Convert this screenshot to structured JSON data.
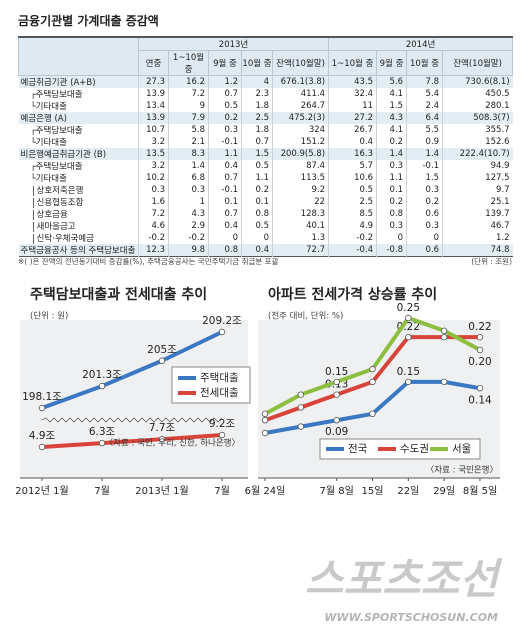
{
  "table": {
    "title": "금융기관별 가계대출 증감액",
    "groups": [
      "2013년",
      "2014년"
    ],
    "columns": [
      "연중",
      "1~10월 중",
      "9월 중",
      "10월 중",
      "잔액(10월말)",
      "1~10월 중",
      "9월 중",
      "10월 중",
      "잔액(10월말)"
    ],
    "rows": [
      {
        "label": "예금취급기관 (A+B)",
        "cells": [
          "27.3",
          "16.2",
          "1.2",
          "4",
          "676.1(3.8)",
          "43.5",
          "5.6",
          "7.8",
          "730.6(8.1)"
        ]
      },
      {
        "label": "┌주택담보대출",
        "cells": [
          "13.9",
          "7.2",
          "0.7",
          "2.3",
          "411.4",
          "32.4",
          "4.1",
          "5.4",
          "450.5"
        ]
      },
      {
        "label": "└기타대출",
        "cells": [
          "13.4",
          "9",
          "0.5",
          "1.8",
          "264.7",
          "11",
          "1.5",
          "2.4",
          "280.1"
        ]
      },
      {
        "label": "예금은행 (A)",
        "cells": [
          "13.9",
          "7.9",
          "0.2",
          "2.5",
          "475.2(3)",
          "27.2",
          "4.3",
          "6.4",
          "508.3(7)"
        ]
      },
      {
        "label": "┌주택담보대출",
        "cells": [
          "10.7",
          "5.8",
          "0.3",
          "1.8",
          "324",
          "26.7",
          "4.1",
          "5.5",
          "355.7"
        ]
      },
      {
        "label": "└기타대출",
        "cells": [
          "3.2",
          "2.1",
          "-0.1",
          "0.7",
          "151.2",
          "0.4",
          "0.2",
          "0.9",
          "152.6"
        ]
      },
      {
        "label": "비은행예금취급기관 (B)",
        "cells": [
          "13.5",
          "8.3",
          "1.1",
          "1.5",
          "200.9(5.8)",
          "16.3",
          "1.4",
          "1.4",
          "222.4(10.7)"
        ]
      },
      {
        "label": "┌주택담보대출",
        "cells": [
          "3.2",
          "1.4",
          "0.4",
          "0.5",
          "87.4",
          "5.7",
          "0.3",
          "-0.1",
          "94.9"
        ]
      },
      {
        "label": "└기타대출",
        "cells": [
          "10.2",
          "6.8",
          "0.7",
          "1.1",
          "113.5",
          "10.6",
          "1.1",
          "1.5",
          "127.5"
        ]
      },
      {
        "label": "상호저축은행",
        "cells": [
          "0.3",
          "0.3",
          "-0.1",
          "0.2",
          "9.2",
          "0.5",
          "0.1",
          "0.3",
          "9.7"
        ]
      },
      {
        "label": "신용협동조합",
        "cells": [
          "1.6",
          "1",
          "0.1",
          "0.1",
          "22",
          "2.5",
          "0.2",
          "0.2",
          "25.1"
        ]
      },
      {
        "label": "상호금융",
        "cells": [
          "7.2",
          "4.3",
          "0.7",
          "0.8",
          "128.3",
          "8.5",
          "0.8",
          "0.6",
          "139.7"
        ]
      },
      {
        "label": "새마을금고",
        "cells": [
          "4.6",
          "2.9",
          "0.4",
          "0.5",
          "40.1",
          "4.9",
          "0.3",
          "0.3",
          "46.7"
        ]
      },
      {
        "label": "신탁·우체국예금",
        "cells": [
          "-0.2",
          "-0.2",
          "0",
          "0",
          "1.3",
          "-0.2",
          "0",
          "0",
          "1.2"
        ]
      },
      {
        "label": "주택금융공사 등의 주택담보대출",
        "cells": [
          "12.3",
          "9.8",
          "0.8",
          "0.4",
          "72.7",
          "-0.4",
          "-0.8",
          "0.6",
          "74.8"
        ]
      }
    ],
    "note": "※( )은 잔액의 전년동기대비 증감률(%), 주택금융공사는 국민주택기금 취급분 포괄",
    "unit": "(단위 : 조원)"
  },
  "chart_data": [
    {
      "type": "line",
      "title": "주택담보대출과 전세대출 추이",
      "subtitle": "(단위 : 원)",
      "categories": [
        "2012년 1월",
        "7월",
        "2013년 1월",
        "7월"
      ],
      "series": [
        {
          "name": "전세대출",
          "color": "#d8443a",
          "values": [
            4.9,
            6.3,
            7.7,
            9.2
          ],
          "value_labels": [
            "4.9조",
            "6.3조",
            "7.7조",
            "9.2조"
          ]
        },
        {
          "name": "주택대출",
          "color": "#3b78c4",
          "values": [
            198.1,
            201.3,
            205,
            209.2
          ],
          "value_labels": [
            "198.1조",
            "201.3조",
            "205조",
            "209.2조"
          ]
        }
      ],
      "source": "〈자료 : 국민, 우리, 신한, 하나은행〉"
    },
    {
      "type": "line",
      "title": "아파트 전세가격 상승률 추이",
      "subtitle": "(전주 대비, 단위: %)",
      "categories": [
        "6월 24일",
        null,
        "7월 8일",
        "15일",
        "22일",
        "29일",
        "8월 5일"
      ],
      "series": [
        {
          "name": "전국",
          "color": "#3b78c4",
          "values": [
            0.07,
            0.08,
            0.09,
            0.1,
            0.15,
            0.15,
            0.14
          ],
          "value_labels": [
            null,
            null,
            "0.09",
            null,
            "0.15",
            null,
            "0.14"
          ]
        },
        {
          "name": "수도권",
          "color": "#d8443a",
          "values": [
            0.09,
            0.11,
            0.13,
            0.15,
            0.22,
            0.22,
            0.22
          ],
          "value_labels": [
            null,
            null,
            "0.13",
            null,
            "0.22",
            null,
            "0.22"
          ]
        },
        {
          "name": "서울",
          "color": "#8cbf3f",
          "values": [
            0.1,
            0.13,
            0.15,
            0.17,
            0.25,
            0.23,
            0.2
          ],
          "value_labels": [
            null,
            null,
            "0.15",
            null,
            "0.25",
            null,
            "0.20"
          ]
        }
      ],
      "source": "〈자료 : 국민은행〉"
    }
  ],
  "watermark": {
    "name": "스포츠조선",
    "url": "WWW.SPORTSCHOSUN.COM"
  }
}
